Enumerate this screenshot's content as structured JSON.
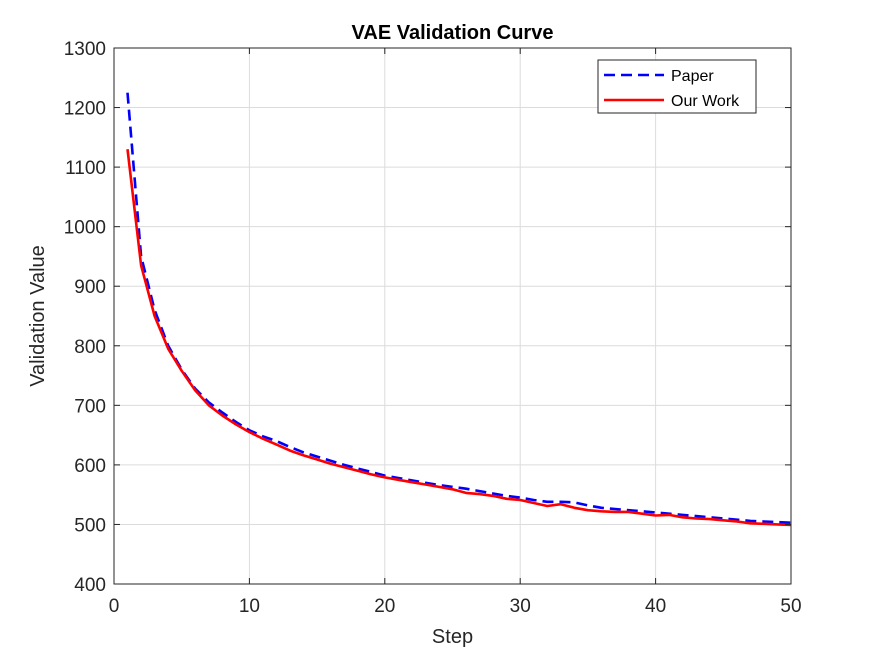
{
  "chart_data": {
    "type": "line",
    "title": "VAE Validation Curve",
    "xlabel": "Step",
    "ylabel": "Validation Value",
    "xlim": [
      0,
      50
    ],
    "ylim": [
      400,
      1300
    ],
    "xticks": [
      0,
      10,
      20,
      30,
      40,
      50
    ],
    "yticks": [
      400,
      500,
      600,
      700,
      800,
      900,
      1000,
      1100,
      1200,
      1300
    ],
    "grid": true,
    "legend_position": "top-right",
    "series": [
      {
        "name": "Paper",
        "color": "#0000ff",
        "line_style": "dashed",
        "x": [
          1,
          2,
          3,
          4,
          5,
          6,
          7,
          8,
          9,
          10,
          11,
          12,
          13,
          14,
          15,
          16,
          17,
          18,
          19,
          20,
          21,
          22,
          23,
          24,
          25,
          26,
          27,
          28,
          29,
          30,
          31,
          32,
          33,
          34,
          35,
          36,
          37,
          38,
          39,
          40,
          41,
          42,
          43,
          44,
          45,
          46,
          47,
          48,
          49,
          50
        ],
        "y": [
          1225,
          950,
          860,
          800,
          760,
          728,
          705,
          688,
          672,
          658,
          648,
          640,
          630,
          621,
          614,
          607,
          600,
          594,
          588,
          582,
          578,
          574,
          570,
          566,
          563,
          560,
          556,
          552,
          548,
          545,
          541,
          538,
          538,
          537,
          532,
          528,
          526,
          524,
          522,
          520,
          518,
          516,
          514,
          512,
          510,
          508,
          506,
          505,
          504,
          503
        ]
      },
      {
        "name": "Our Work",
        "color": "#ff0000",
        "line_style": "solid",
        "x": [
          1,
          2,
          3,
          4,
          5,
          6,
          7,
          8,
          9,
          10,
          11,
          12,
          13,
          14,
          15,
          16,
          17,
          18,
          19,
          20,
          21,
          22,
          23,
          24,
          25,
          26,
          27,
          28,
          29,
          30,
          31,
          32,
          33,
          34,
          35,
          36,
          37,
          38,
          39,
          40,
          41,
          42,
          43,
          44,
          45,
          46,
          47,
          48,
          49,
          50
        ],
        "y": [
          1130,
          935,
          850,
          795,
          758,
          725,
          700,
          683,
          668,
          655,
          644,
          634,
          624,
          616,
          609,
          602,
          596,
          590,
          584,
          579,
          575,
          571,
          567,
          563,
          559,
          553,
          551,
          548,
          543,
          541,
          536,
          531,
          534,
          528,
          524,
          522,
          521,
          521,
          518,
          515,
          516,
          512,
          510,
          509,
          507,
          505,
          502,
          501,
          500,
          499
        ]
      }
    ]
  }
}
